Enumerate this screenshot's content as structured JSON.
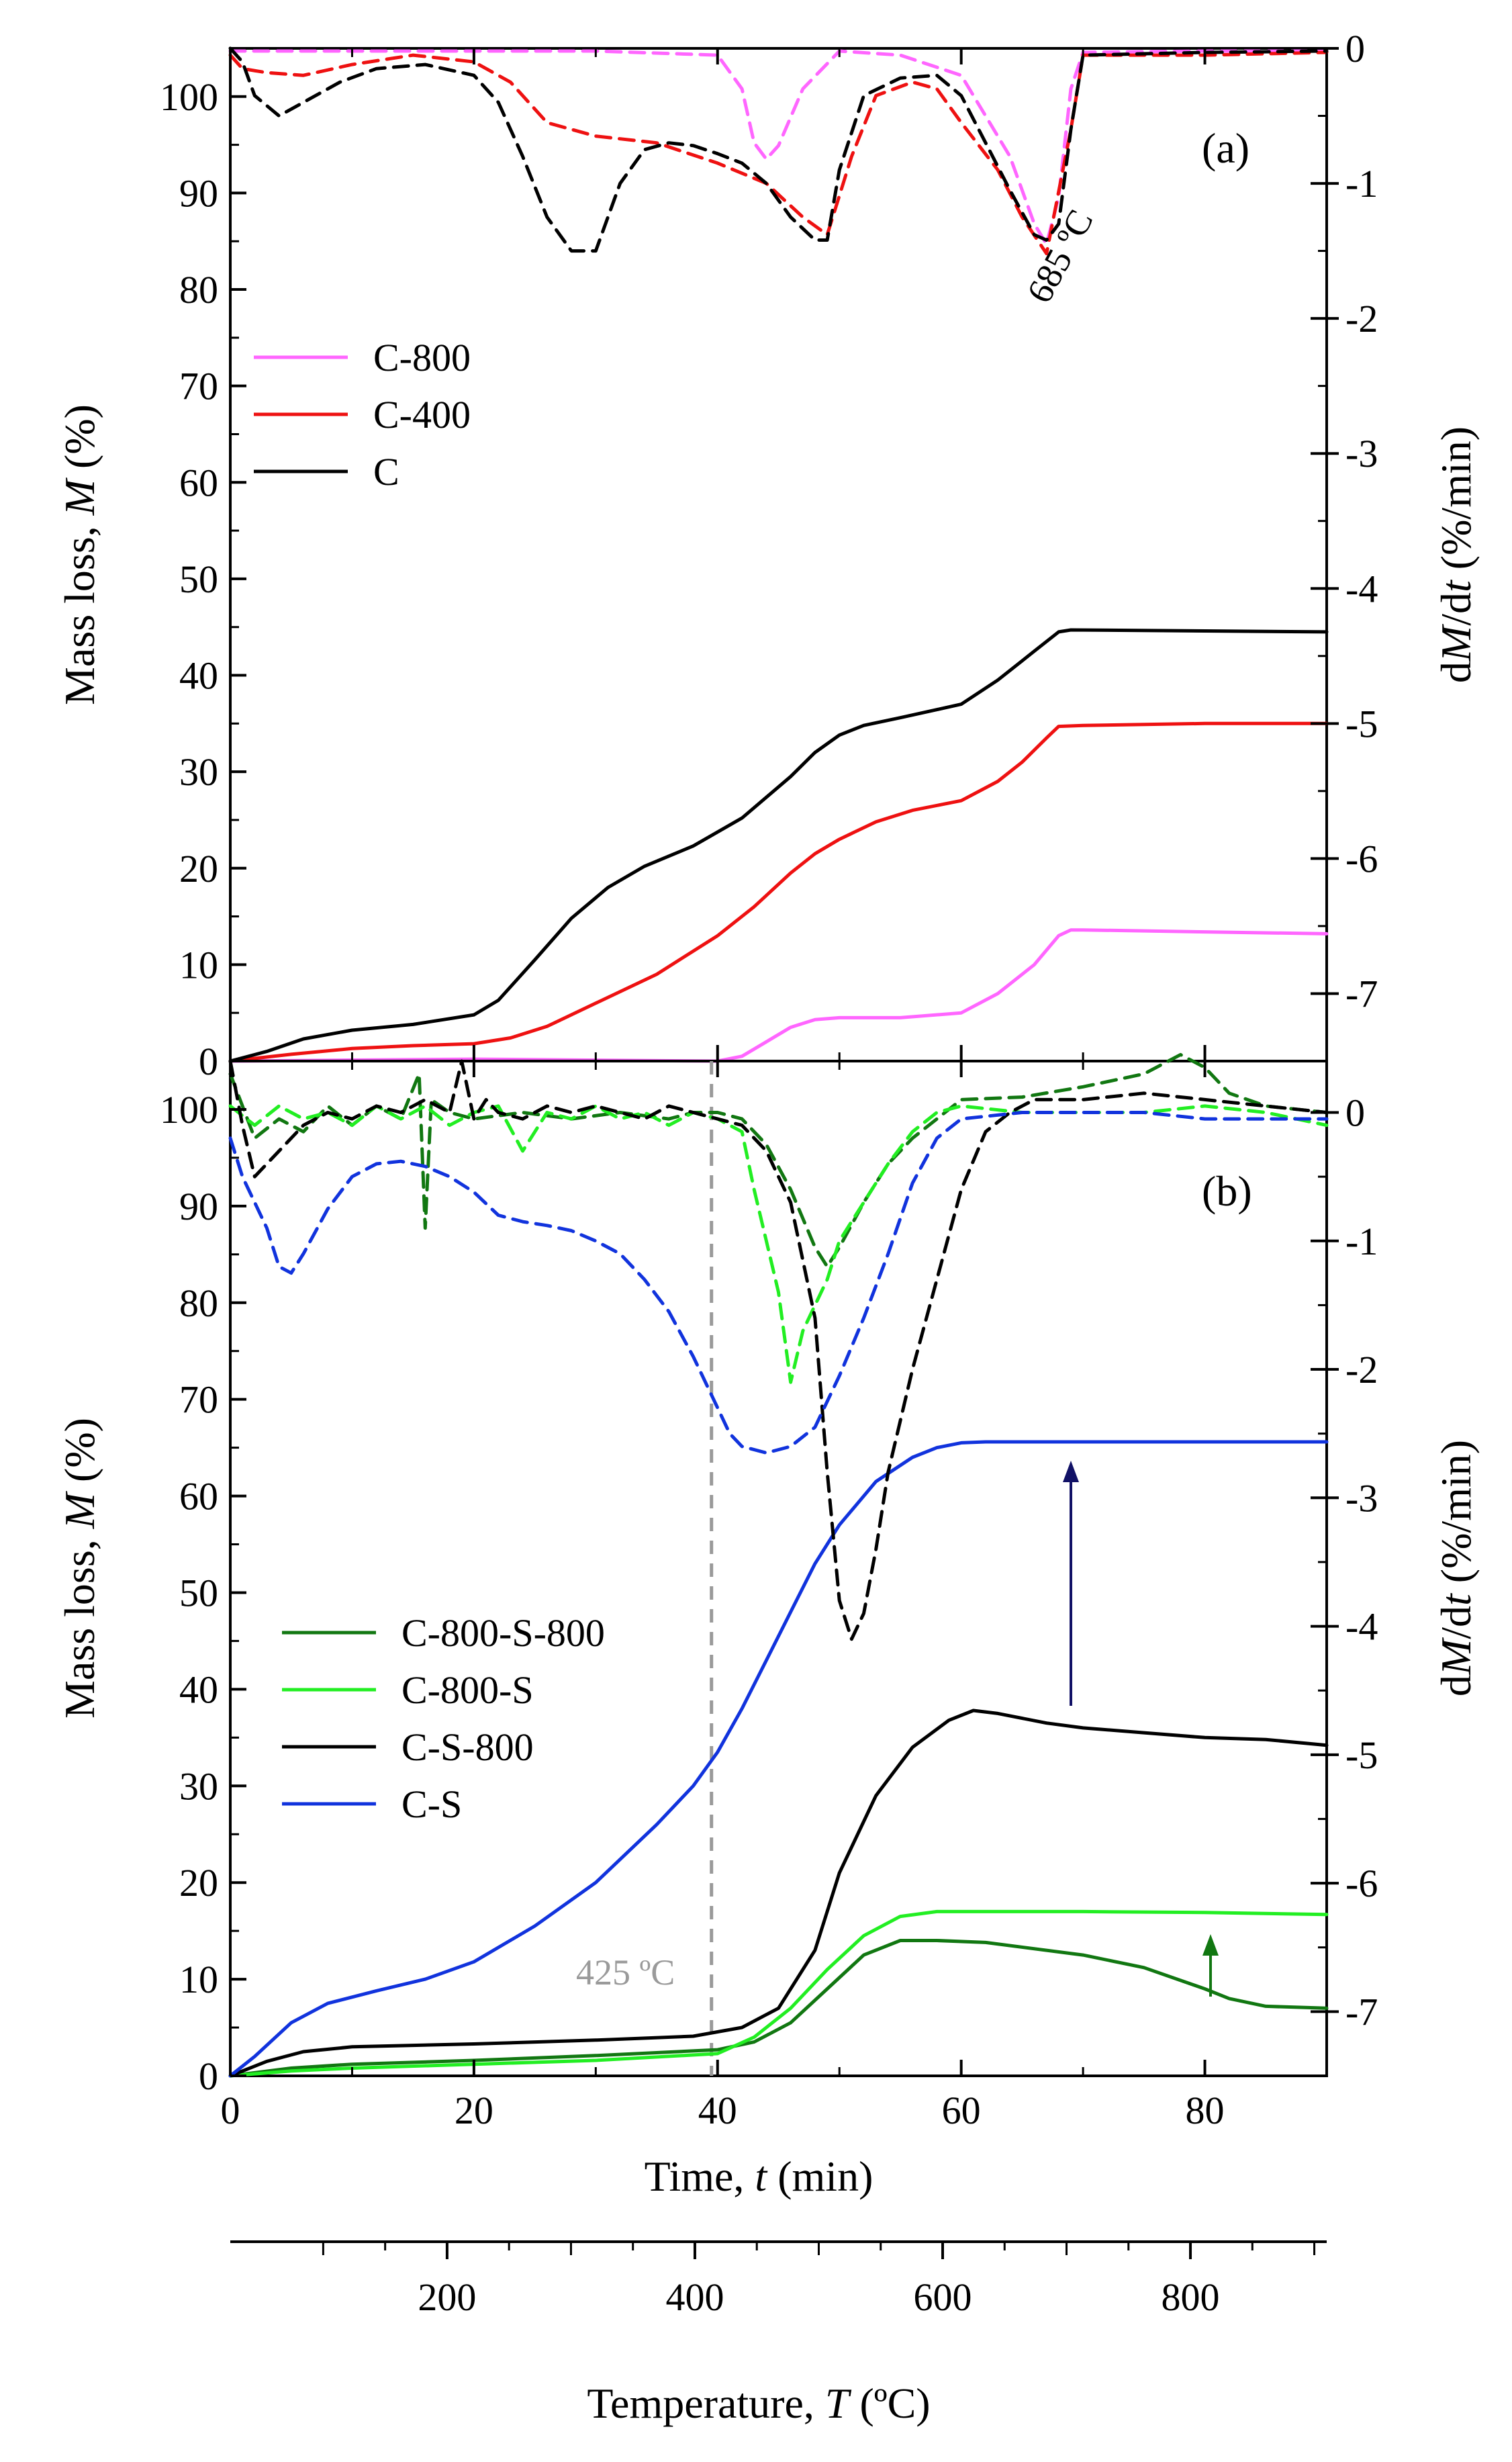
{
  "x_axis_time": {
    "label_prefix": "Time, ",
    "label_var": "t",
    "label_unit": " (min)",
    "ticks": [
      "0",
      "20",
      "40",
      "60",
      "80"
    ],
    "range": [
      0,
      90
    ]
  },
  "x_axis_temperature": {
    "label_prefix": "Temperature, ",
    "label_var": "T",
    "label_unit": " (ºC)",
    "ticks": [
      "200",
      "400",
      "600",
      "800"
    ],
    "range": [
      25,
      910
    ]
  },
  "panel_a": {
    "tag": "(a)",
    "annotation": "685 ºC",
    "left_axis": {
      "label_prefix": "Mass loss, ",
      "label_var": "M",
      "label_unit": " (%)",
      "ticks": [
        "0",
        "10",
        "20",
        "30",
        "40",
        "50",
        "60",
        "70",
        "80",
        "90",
        "100"
      ],
      "range": [
        0,
        105
      ]
    },
    "right_axis": {
      "label_prefix": "d",
      "label_var": "M",
      "label_mid": "/d",
      "label_var2": "t",
      "label_unit": " (%/min)",
      "ticks": [
        "0",
        "-1",
        "-2",
        "-3",
        "-4",
        "-5",
        "-6",
        "-7"
      ],
      "range": [
        -7.5,
        0
      ]
    },
    "legend": [
      "C-800",
      "C-400",
      "C"
    ]
  },
  "panel_b": {
    "tag": "(b)",
    "annotation": "425 ºC",
    "left_axis": {
      "label_prefix": "Mass loss, ",
      "label_var": "M",
      "label_unit": " (%)",
      "ticks": [
        "0",
        "10",
        "20",
        "30",
        "40",
        "50",
        "60",
        "70",
        "80",
        "90",
        "100"
      ],
      "range": [
        0,
        105
      ]
    },
    "right_axis": {
      "label_prefix": "d",
      "label_var": "M",
      "label_mid": "/d",
      "label_var2": "t",
      "label_unit": " (%/min)",
      "ticks": [
        "0",
        "-1",
        "-2",
        "-3",
        "-4",
        "-5",
        "-6",
        "-7"
      ],
      "range": [
        -7.5,
        0.4
      ]
    },
    "legend": [
      "C-800-S-800",
      "C-800-S",
      "C-S-800",
      "C-S"
    ]
  },
  "chart_data": [
    {
      "panel": "a",
      "type": "line",
      "x_unit": "min",
      "series": [
        {
          "name": "C-800",
          "color": "#ff66ff",
          "axis": "left",
          "style": "solid",
          "x": [
            0,
            20,
            40,
            42,
            44,
            46,
            48,
            50,
            55,
            60,
            63,
            66,
            68,
            69,
            70,
            80,
            90
          ],
          "values": [
            0,
            0.2,
            0,
            0.5,
            2,
            3.5,
            4.3,
            4.5,
            4.5,
            5,
            7,
            10,
            13,
            13.6,
            13.6,
            13.4,
            13.2
          ]
        },
        {
          "name": "C-400",
          "color": "#ee1111",
          "axis": "left",
          "style": "solid",
          "x": [
            0,
            5,
            10,
            15,
            20,
            23,
            26,
            30,
            35,
            40,
            43,
            46,
            48,
            50,
            53,
            56,
            60,
            63,
            65,
            67,
            68,
            70,
            80,
            90
          ],
          "values": [
            0,
            0.7,
            1.3,
            1.6,
            1.8,
            2.4,
            3.6,
            6,
            9,
            13,
            16,
            19.5,
            21.5,
            23,
            24.8,
            26,
            27,
            29,
            31,
            33.5,
            34.7,
            34.8,
            35,
            35
          ]
        },
        {
          "name": "C",
          "color": "#000000",
          "axis": "left",
          "style": "solid",
          "x": [
            0,
            3,
            6,
            10,
            15,
            20,
            22,
            25,
            28,
            31,
            34,
            38,
            42,
            46,
            48,
            50,
            52,
            55,
            60,
            63,
            66,
            68,
            69,
            80,
            90
          ],
          "values": [
            0,
            1,
            2.3,
            3.2,
            3.8,
            4.8,
            6.3,
            10.5,
            14.8,
            18,
            20.2,
            22.3,
            25.2,
            29.5,
            32,
            33.8,
            34.8,
            35.6,
            37,
            39.5,
            42.5,
            44.5,
            44.7,
            44.6,
            44.5
          ]
        },
        {
          "name": "C-800",
          "color": "#ff66ff",
          "axis": "right",
          "style": "dashed",
          "x": [
            0,
            10,
            20,
            30,
            40,
            42,
            43,
            44,
            45,
            47,
            50,
            55,
            60,
            64,
            66,
            67,
            68,
            69,
            70,
            80,
            90
          ],
          "values": [
            -0.02,
            -0.02,
            -0.02,
            -0.02,
            -0.05,
            -0.3,
            -0.7,
            -0.82,
            -0.72,
            -0.3,
            -0.02,
            -0.05,
            -0.2,
            -0.8,
            -1.3,
            -1.45,
            -1.1,
            -0.3,
            -0.03,
            -0.02,
            -0.02
          ]
        },
        {
          "name": "C-400",
          "color": "#ee1111",
          "axis": "right",
          "style": "dashed",
          "x": [
            0,
            1,
            3,
            6,
            10,
            15,
            20,
            23,
            26,
            30,
            35,
            40,
            44,
            47,
            49,
            51,
            53,
            56,
            58,
            60,
            63,
            65,
            67,
            69,
            70,
            80,
            90
          ],
          "values": [
            -0.05,
            -0.15,
            -0.18,
            -0.2,
            -0.12,
            -0.05,
            -0.1,
            -0.25,
            -0.55,
            -0.65,
            -0.7,
            -0.85,
            -1.0,
            -1.25,
            -1.38,
            -0.8,
            -0.35,
            -0.25,
            -0.3,
            -0.55,
            -0.9,
            -1.25,
            -1.52,
            -0.6,
            -0.05,
            -0.05,
            -0.03
          ]
        },
        {
          "name": "C",
          "color": "#000000",
          "axis": "right",
          "style": "dashed",
          "x": [
            0,
            1,
            2,
            4,
            6,
            9,
            12,
            16,
            20,
            22,
            24,
            26,
            28,
            30,
            32,
            34,
            36,
            38,
            40,
            42,
            44,
            46,
            48,
            49,
            50,
            52,
            55,
            58,
            60,
            62,
            64,
            66,
            67,
            68,
            69,
            70,
            80,
            90
          ],
          "values": [
            0,
            -0.1,
            -0.35,
            -0.5,
            -0.4,
            -0.25,
            -0.15,
            -0.12,
            -0.2,
            -0.4,
            -0.8,
            -1.25,
            -1.5,
            -1.5,
            -1.0,
            -0.75,
            -0.7,
            -0.72,
            -0.78,
            -0.85,
            -1.0,
            -1.25,
            -1.42,
            -1.42,
            -0.9,
            -0.35,
            -0.22,
            -0.2,
            -0.35,
            -0.7,
            -1.05,
            -1.38,
            -1.42,
            -1.3,
            -0.6,
            -0.05,
            -0.03,
            -0.02
          ]
        }
      ]
    },
    {
      "panel": "b",
      "type": "line",
      "x_unit": "min",
      "vline_x": 39.5,
      "series": [
        {
          "name": "C-800-S-800",
          "color": "#117711",
          "axis": "left",
          "style": "solid",
          "x": [
            0,
            5,
            10,
            20,
            30,
            40,
            43,
            46,
            49,
            52,
            55,
            58,
            62,
            70,
            75,
            80,
            82,
            85,
            90
          ],
          "values": [
            0,
            0.8,
            1.2,
            1.6,
            2.1,
            2.7,
            3.5,
            5.5,
            9,
            12.5,
            14,
            14,
            13.8,
            12.5,
            11.2,
            9,
            8,
            7.2,
            7
          ]
        },
        {
          "name": "C-800-S",
          "color": "#22ee22",
          "axis": "left",
          "style": "solid",
          "x": [
            0,
            5,
            10,
            20,
            30,
            40,
            43,
            46,
            49,
            52,
            55,
            58,
            62,
            70,
            80,
            90
          ],
          "values": [
            0,
            0.5,
            0.8,
            1.2,
            1.6,
            2.3,
            4,
            7,
            11,
            14.5,
            16.5,
            17,
            17,
            17,
            16.9,
            16.7
          ]
        },
        {
          "name": "C-S-800",
          "color": "#000000",
          "axis": "left",
          "style": "solid",
          "x": [
            0,
            3,
            6,
            10,
            20,
            30,
            38,
            42,
            45,
            48,
            50,
            53,
            56,
            59,
            61,
            63,
            67,
            70,
            75,
            80,
            85,
            90
          ],
          "values": [
            0,
            1.5,
            2.5,
            3,
            3.3,
            3.7,
            4.1,
            5,
            7,
            13,
            21,
            29,
            34,
            36.8,
            37.8,
            37.5,
            36.5,
            36,
            35.5,
            35,
            34.8,
            34.2
          ]
        },
        {
          "name": "C-S",
          "color": "#1133dd",
          "axis": "left",
          "style": "solid",
          "x": [
            0,
            2,
            5,
            8,
            12,
            16,
            20,
            25,
            30,
            35,
            38,
            40,
            42,
            44,
            46,
            48,
            50,
            53,
            56,
            58,
            60,
            62,
            65,
            70,
            80,
            90
          ],
          "values": [
            0,
            2,
            5.5,
            7.5,
            8.8,
            10,
            11.8,
            15.5,
            20,
            26,
            30,
            33.5,
            38,
            43,
            48,
            53,
            57,
            61.5,
            64,
            65,
            65.5,
            65.6,
            65.6,
            65.6,
            65.6,
            65.6
          ]
        },
        {
          "name": "C-800-S-800",
          "color": "#117711",
          "axis": "right",
          "style": "dashed",
          "x": [
            0,
            2,
            4,
            6,
            8,
            10,
            12,
            14,
            15.5,
            16,
            16.5,
            18,
            20,
            24,
            28,
            32,
            36,
            38,
            40,
            42,
            44,
            46,
            48,
            49,
            50,
            52,
            54,
            56,
            58,
            60,
            65,
            70,
            75,
            78,
            80,
            82,
            85,
            90
          ],
          "values": [
            0.3,
            -0.2,
            -0.05,
            -0.15,
            0.05,
            -0.1,
            0.05,
            -0.05,
            0.3,
            -0.9,
            0.1,
            0.0,
            -0.05,
            0.0,
            -0.05,
            0.0,
            -0.05,
            0.0,
            0.0,
            -0.05,
            -0.25,
            -0.6,
            -1.05,
            -1.2,
            -1.05,
            -0.7,
            -0.4,
            -0.2,
            -0.05,
            0.1,
            0.12,
            0.2,
            0.3,
            0.45,
            0.35,
            0.15,
            0.05,
            0.0
          ]
        },
        {
          "name": "C-800-S",
          "color": "#22ee22",
          "axis": "right",
          "style": "dashed",
          "x": [
            0,
            2,
            4,
            6,
            8,
            10,
            12,
            14,
            16,
            18,
            20,
            22,
            24,
            26,
            28,
            30,
            32,
            34,
            36,
            38,
            40,
            42,
            43,
            44,
            45,
            46,
            47,
            48,
            49,
            50,
            52,
            54,
            56,
            58,
            60,
            65,
            70,
            75,
            80,
            85,
            90
          ],
          "values": [
            0.05,
            -0.1,
            0.05,
            -0.05,
            0.0,
            -0.1,
            0.05,
            -0.05,
            0.05,
            -0.1,
            0.0,
            0.05,
            -0.3,
            0.0,
            -0.05,
            0.05,
            -0.05,
            0.0,
            -0.1,
            0.0,
            -0.05,
            -0.15,
            -0.6,
            -1.0,
            -1.4,
            -2.1,
            -1.7,
            -1.5,
            -1.3,
            -1.0,
            -0.7,
            -0.4,
            -0.15,
            0.0,
            0.05,
            0.0,
            0.0,
            0.0,
            0.05,
            0.0,
            -0.1
          ]
        },
        {
          "name": "C-S-800",
          "color": "#000000",
          "axis": "right",
          "style": "dashed",
          "x": [
            0,
            1,
            2,
            4,
            6,
            8,
            10,
            12,
            14,
            16,
            18,
            19,
            20,
            21,
            22,
            24,
            26,
            28,
            30,
            32,
            34,
            36,
            38,
            40,
            42,
            44,
            46,
            48,
            49,
            50,
            51,
            52,
            53,
            54,
            56,
            58,
            60,
            62,
            64,
            66,
            70,
            75,
            80,
            85,
            90
          ],
          "values": [
            0.4,
            -0.1,
            -0.5,
            -0.3,
            -0.1,
            0.0,
            -0.05,
            0.05,
            0.0,
            0.1,
            0.0,
            0.4,
            -0.05,
            0.1,
            0.0,
            -0.05,
            0.05,
            0.0,
            0.05,
            0.0,
            -0.05,
            0.05,
            0.0,
            -0.05,
            -0.1,
            -0.3,
            -0.7,
            -1.6,
            -2.8,
            -3.8,
            -4.1,
            -3.9,
            -3.4,
            -2.8,
            -2.0,
            -1.3,
            -0.6,
            -0.15,
            0.0,
            0.1,
            0.1,
            0.15,
            0.1,
            0.05,
            0.0
          ]
        },
        {
          "name": "C-S",
          "color": "#1133dd",
          "axis": "right",
          "style": "dashed",
          "x": [
            0,
            1,
            2,
            3,
            4,
            5,
            6,
            8,
            10,
            12,
            14,
            16,
            18,
            20,
            22,
            24,
            26,
            28,
            30,
            32,
            34,
            36,
            38,
            40,
            41,
            42,
            44,
            46,
            48,
            50,
            52,
            54,
            56,
            58,
            60,
            65,
            70,
            75,
            80,
            85,
            90
          ],
          "values": [
            -0.2,
            -0.5,
            -0.7,
            -0.9,
            -1.2,
            -1.25,
            -1.1,
            -0.75,
            -0.5,
            -0.4,
            -0.38,
            -0.42,
            -0.5,
            -0.62,
            -0.8,
            -0.85,
            -0.88,
            -0.92,
            -1.0,
            -1.1,
            -1.3,
            -1.55,
            -1.9,
            -2.3,
            -2.5,
            -2.6,
            -2.65,
            -2.6,
            -2.45,
            -2.05,
            -1.6,
            -1.1,
            -0.55,
            -0.2,
            -0.05,
            0.0,
            0.0,
            0.0,
            -0.05,
            -0.05,
            -0.05
          ]
        }
      ]
    }
  ]
}
